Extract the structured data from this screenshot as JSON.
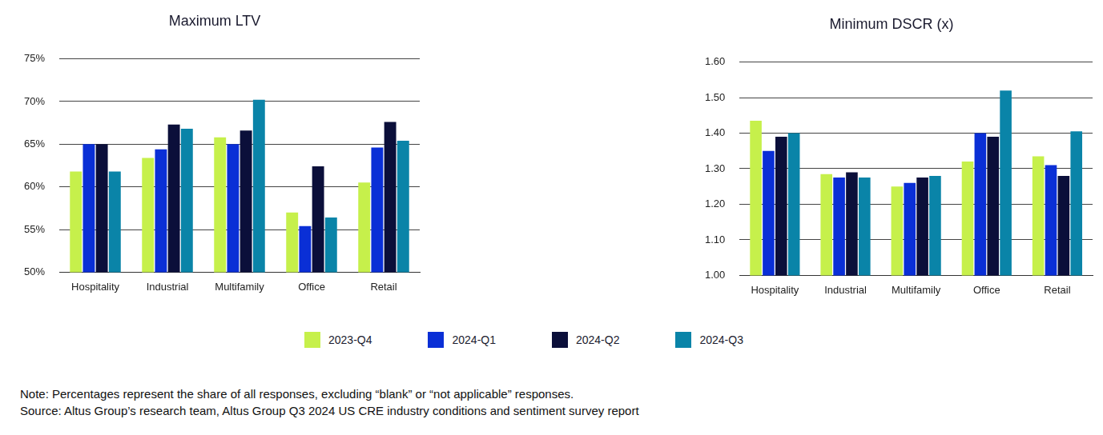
{
  "chart_data": [
    {
      "type": "bar",
      "title": "Maximum LTV",
      "categories": [
        "Hospitality",
        "Industrial",
        "Multifamily",
        "Office",
        "Retail"
      ],
      "series": [
        {
          "name": "2023-Q4",
          "color": "#c6f04b",
          "values": [
            61.8,
            63.4,
            65.8,
            57.0,
            60.5
          ]
        },
        {
          "name": "2024-Q1",
          "color": "#0a2fd6",
          "values": [
            65.0,
            64.4,
            65.0,
            55.4,
            64.6
          ]
        },
        {
          "name": "2024-Q2",
          "color": "#0b0f3a",
          "values": [
            65.0,
            67.3,
            66.6,
            62.4,
            67.6
          ]
        },
        {
          "name": "2024-Q3",
          "color": "#0a84a8",
          "values": [
            61.8,
            66.8,
            70.2,
            56.4,
            65.4
          ]
        }
      ],
      "ylim": [
        50,
        75
      ],
      "yticks": [
        {
          "value": 50,
          "label": "50%"
        },
        {
          "value": 55,
          "label": "55%"
        },
        {
          "value": 60,
          "label": "60%"
        },
        {
          "value": 65,
          "label": "65%"
        },
        {
          "value": 70,
          "label": "70%"
        },
        {
          "value": 75,
          "label": "75%"
        }
      ],
      "grid": true,
      "legend": "bottom"
    },
    {
      "type": "bar",
      "title": "Minimum DSCR (x)",
      "categories": [
        "Hospitality",
        "Industrial",
        "Multifamily",
        "Office",
        "Retail"
      ],
      "series": [
        {
          "name": "2023-Q4",
          "color": "#c6f04b",
          "values": [
            1.435,
            1.285,
            1.25,
            1.32,
            1.335
          ]
        },
        {
          "name": "2024-Q1",
          "color": "#0a2fd6",
          "values": [
            1.35,
            1.275,
            1.26,
            1.4,
            1.31
          ]
        },
        {
          "name": "2024-Q2",
          "color": "#0b0f3a",
          "values": [
            1.39,
            1.29,
            1.275,
            1.39,
            1.28
          ]
        },
        {
          "name": "2024-Q3",
          "color": "#0a84a8",
          "values": [
            1.4,
            1.275,
            1.28,
            1.52,
            1.405
          ]
        }
      ],
      "ylim": [
        1.0,
        1.6
      ],
      "yticks": [
        {
          "value": 1.0,
          "label": "1.00"
        },
        {
          "value": 1.1,
          "label": "1.10"
        },
        {
          "value": 1.2,
          "label": "1.20"
        },
        {
          "value": 1.3,
          "label": "1.30"
        },
        {
          "value": 1.4,
          "label": "1.40"
        },
        {
          "value": 1.5,
          "label": "1.50"
        },
        {
          "value": 1.6,
          "label": "1.60"
        }
      ],
      "grid": true,
      "legend": "bottom"
    }
  ],
  "note": "Note: Percentages represent the share of all responses, excluding “blank” or “not applicable” responses.",
  "source": "Source: Altus Group’s research team, Altus Group Q3 2024 US CRE industry conditions and sentiment survey report"
}
